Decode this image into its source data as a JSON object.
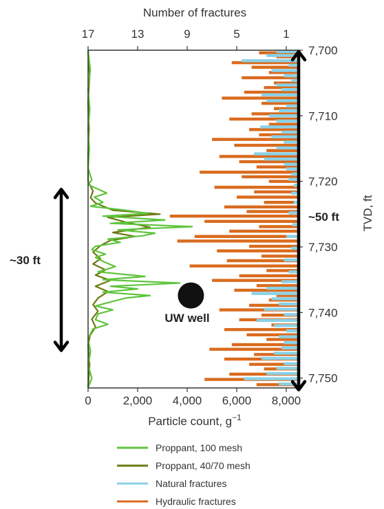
{
  "chart_data": {
    "type": "bar",
    "top_axis": {
      "label": "Number of fractures",
      "ticks": [
        17,
        13,
        9,
        5,
        1
      ],
      "range": [
        17,
        0
      ]
    },
    "bottom_axis": {
      "label_main": "Particle count, g",
      "label_sup": "−1",
      "ticks": [
        "0",
        "2,000",
        "4,000",
        "6,000",
        "8,000"
      ],
      "tick_values": [
        0,
        2000,
        4000,
        6000,
        8000
      ],
      "range": [
        0,
        8500
      ]
    },
    "right_axis": {
      "label": "TVD, ft",
      "ticks": [
        "7,700",
        "7,710",
        "7,720",
        "7,730",
        "7,740",
        "7,750"
      ],
      "tick_values": [
        7700,
        7710,
        7720,
        7730,
        7740,
        7750
      ],
      "range": [
        7700,
        7751.5
      ]
    },
    "annotations": {
      "span_left": "~30 ft",
      "span_right": "~50 ft",
      "well_label": "UW well"
    },
    "well": {
      "depth": 7737.4,
      "particle_count": 4150
    },
    "span_left_range": [
      7721.0,
      7746.0
    ],
    "span_right_range": [
      7700.0,
      7752.0
    ],
    "series": [
      {
        "name": "Proppant, 100 mesh",
        "color": "#5ec43c",
        "points": [
          [
            0,
            7700
          ],
          [
            90,
            7703
          ],
          [
            0,
            7706
          ],
          [
            70,
            7709
          ],
          [
            0,
            7712
          ],
          [
            50,
            7715
          ],
          [
            0,
            7718
          ],
          [
            150,
            7719.8
          ],
          [
            0,
            7720.5
          ],
          [
            750,
            7721.8
          ],
          [
            250,
            7722.4
          ],
          [
            600,
            7723.2
          ],
          [
            100,
            7723.8
          ],
          [
            1500,
            7724.4
          ],
          [
            2400,
            7724.9
          ],
          [
            600,
            7725.3
          ],
          [
            3100,
            7725.9
          ],
          [
            900,
            7726.4
          ],
          [
            4200,
            7726.9
          ],
          [
            1200,
            7727.4
          ],
          [
            2700,
            7727.9
          ],
          [
            2200,
            7728.3
          ],
          [
            800,
            7728.8
          ],
          [
            1300,
            7729.3
          ],
          [
            300,
            7729.9
          ],
          [
            150,
            7730.4
          ],
          [
            700,
            7731.1
          ],
          [
            300,
            7731.6
          ],
          [
            600,
            7732.2
          ],
          [
            1100,
            7733.0
          ],
          [
            400,
            7733.8
          ],
          [
            2300,
            7734.5
          ],
          [
            600,
            7735.0
          ],
          [
            3700,
            7735.5
          ],
          [
            900,
            7736.0
          ],
          [
            2000,
            7736.4
          ],
          [
            600,
            7736.9
          ],
          [
            2500,
            7737.4
          ],
          [
            1500,
            7737.8
          ],
          [
            800,
            7738.5
          ],
          [
            300,
            7739.0
          ],
          [
            1000,
            7739.6
          ],
          [
            400,
            7740.2
          ],
          [
            300,
            7741.1
          ],
          [
            800,
            7741.8
          ],
          [
            200,
            7742.5
          ],
          [
            100,
            7743.2
          ],
          [
            0,
            7744
          ],
          [
            100,
            7746
          ],
          [
            0,
            7748
          ],
          [
            150,
            7750
          ],
          [
            0,
            7751.5
          ]
        ]
      },
      {
        "name": "Proppant, 40/70 mesh",
        "color": "#6b7a10",
        "points": [
          [
            0,
            7700
          ],
          [
            60,
            7704
          ],
          [
            0,
            7708
          ],
          [
            40,
            7712
          ],
          [
            0,
            7716
          ],
          [
            0,
            7720
          ],
          [
            200,
            7721.5
          ],
          [
            100,
            7722.5
          ],
          [
            300,
            7723.3
          ],
          [
            1000,
            7724.4
          ],
          [
            2900,
            7725.0
          ],
          [
            800,
            7725.5
          ],
          [
            1500,
            7726.2
          ],
          [
            2500,
            7727.0
          ],
          [
            1000,
            7727.8
          ],
          [
            1900,
            7728.4
          ],
          [
            900,
            7729.0
          ],
          [
            500,
            7729.8
          ],
          [
            200,
            7730.8
          ],
          [
            500,
            7731.8
          ],
          [
            200,
            7732.6
          ],
          [
            700,
            7733.5
          ],
          [
            300,
            7734.3
          ],
          [
            900,
            7735.1
          ],
          [
            300,
            7736.0
          ],
          [
            800,
            7736.8
          ],
          [
            400,
            7737.8
          ],
          [
            200,
            7738.8
          ],
          [
            400,
            7739.8
          ],
          [
            150,
            7741.0
          ],
          [
            300,
            7742.2
          ],
          [
            80,
            7743.5
          ],
          [
            0,
            7745
          ],
          [
            60,
            7748
          ],
          [
            0,
            7751.5
          ]
        ]
      },
      {
        "name": "Natural fractures",
        "color": "#8ad1e6",
        "bars": [
          [
            7700.2,
            1.8
          ],
          [
            7700.8,
            2.6
          ],
          [
            7701.6,
            4.6
          ],
          [
            7702.3,
            0.8
          ],
          [
            7703.1,
            2.2
          ],
          [
            7703.9,
            1.2
          ],
          [
            7704.6,
            0.6
          ],
          [
            7705.3,
            1.8
          ],
          [
            7706.0,
            1.4
          ],
          [
            7706.8,
            3.0
          ],
          [
            7707.7,
            2.6
          ],
          [
            7708.5,
            1.0
          ],
          [
            7709.2,
            1.6
          ],
          [
            7710.0,
            2.4
          ],
          [
            7710.8,
            1.8
          ],
          [
            7711.7,
            3.1
          ],
          [
            7712.5,
            1.4
          ],
          [
            7713.2,
            2.2
          ],
          [
            7714.0,
            1.2
          ],
          [
            7714.9,
            1.8
          ],
          [
            7715.8,
            3.6
          ],
          [
            7716.6,
            2.8
          ],
          [
            7717.4,
            1.2
          ],
          [
            7718.1,
            1.0
          ],
          [
            7718.9,
            0.6
          ],
          [
            7719.7,
            0.8
          ],
          [
            7720.6,
            0.4
          ],
          [
            7721.8,
            0.6
          ],
          [
            7723.2,
            0.4
          ],
          [
            7724.8,
            0.8
          ],
          [
            7726.6,
            0.5
          ],
          [
            7728.4,
            1.0
          ],
          [
            7730.2,
            0.6
          ],
          [
            7732.0,
            1.2
          ],
          [
            7733.8,
            0.8
          ],
          [
            7735.3,
            1.4
          ],
          [
            7736.3,
            2.6
          ],
          [
            7737.1,
            3.8
          ],
          [
            7737.9,
            2.2
          ],
          [
            7738.7,
            1.6
          ],
          [
            7739.5,
            2.8
          ],
          [
            7740.3,
            1.2
          ],
          [
            7741.2,
            3.4
          ],
          [
            7742.0,
            2.0
          ],
          [
            7742.8,
            1.0
          ],
          [
            7743.7,
            1.6
          ],
          [
            7744.6,
            1.2
          ],
          [
            7745.4,
            1.4
          ],
          [
            7746.2,
            2.0
          ],
          [
            7747.0,
            3.0
          ],
          [
            7747.8,
            1.2
          ],
          [
            7748.5,
            1.8
          ],
          [
            7749.3,
            2.6
          ],
          [
            7750.1,
            4.4
          ],
          [
            7750.9,
            1.6
          ]
        ]
      },
      {
        "name": "Hydraulic fractures",
        "color": "#d96b1e",
        "bars": [
          [
            7700.4,
            3.2
          ],
          [
            7701.0,
            1.8
          ],
          [
            7701.9,
            5.4
          ],
          [
            7702.6,
            3.8
          ],
          [
            7703.4,
            2.4
          ],
          [
            7704.2,
            4.6
          ],
          [
            7705.0,
            2.0
          ],
          [
            7705.7,
            2.8
          ],
          [
            7706.4,
            4.4
          ],
          [
            7707.3,
            6.2
          ],
          [
            7708.1,
            3.0
          ],
          [
            7708.9,
            2.0
          ],
          [
            7709.7,
            3.8
          ],
          [
            7710.5,
            5.6
          ],
          [
            7711.3,
            2.4
          ],
          [
            7712.1,
            4.0
          ],
          [
            7712.9,
            3.2
          ],
          [
            7713.6,
            7.0
          ],
          [
            7714.5,
            5.2
          ],
          [
            7715.3,
            2.6
          ],
          [
            7716.2,
            6.4
          ],
          [
            7717.0,
            4.8
          ],
          [
            7717.8,
            3.4
          ],
          [
            7718.6,
            8.0
          ],
          [
            7719.3,
            4.6
          ],
          [
            7720.0,
            2.4
          ],
          [
            7720.9,
            6.8
          ],
          [
            7721.6,
            3.6
          ],
          [
            7722.4,
            5.0
          ],
          [
            7723.2,
            2.8
          ],
          [
            7723.9,
            6.0
          ],
          [
            7724.6,
            4.2
          ],
          [
            7725.3,
            10.4
          ],
          [
            7726.1,
            7.6
          ],
          [
            7726.9,
            3.2
          ],
          [
            7727.6,
            5.6
          ],
          [
            7728.4,
            8.4
          ],
          [
            7729.1,
            9.8
          ],
          [
            7729.9,
            4.0
          ],
          [
            7730.6,
            6.6
          ],
          [
            7731.4,
            3.0
          ],
          [
            7732.1,
            5.8
          ],
          [
            7732.9,
            8.8
          ],
          [
            7733.6,
            2.6
          ],
          [
            7734.4,
            4.8
          ],
          [
            7735.1,
            7.0
          ],
          [
            7735.9,
            3.4
          ],
          [
            7736.6,
            5.2
          ],
          [
            7737.4,
            1.8
          ],
          [
            7738.1,
            2.4
          ],
          [
            7738.9,
            4.0
          ],
          [
            7739.6,
            6.4
          ],
          [
            7740.4,
            3.0
          ],
          [
            7741.1,
            4.8
          ],
          [
            7741.9,
            2.2
          ],
          [
            7742.6,
            6.0
          ],
          [
            7743.4,
            4.2
          ],
          [
            7744.1,
            2.6
          ],
          [
            7744.9,
            5.4
          ],
          [
            7745.6,
            7.2
          ],
          [
            7746.4,
            3.6
          ],
          [
            7747.1,
            6.0
          ],
          [
            7747.9,
            4.0
          ],
          [
            7748.6,
            2.8
          ],
          [
            7749.4,
            5.6
          ],
          [
            7750.2,
            7.6
          ],
          [
            7751.0,
            3.4
          ]
        ]
      }
    ],
    "legend": {
      "placement": "bottom-center",
      "entries": [
        "Proppant, 100 mesh",
        "Proppant, 40/70 mesh",
        "Natural fractures",
        "Hydraulic fractures"
      ],
      "colors": [
        "#5ec43c",
        "#6b7a10",
        "#8ad1e6",
        "#d96b1e"
      ]
    }
  }
}
